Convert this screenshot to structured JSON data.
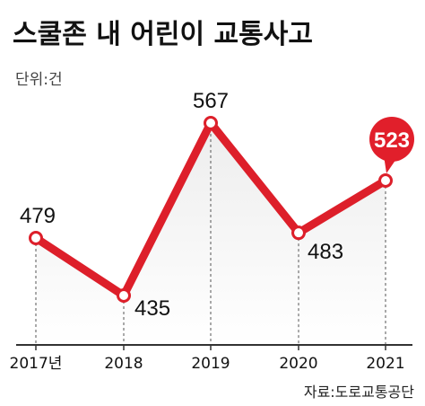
{
  "chart_data": {
    "type": "line",
    "title": "스쿨존 내 어린이 교통사고",
    "unit": "단위:건",
    "categories": [
      "2017년",
      "2018",
      "2019",
      "2020",
      "2021"
    ],
    "values": [
      479,
      435,
      567,
      483,
      523
    ],
    "highlight_index": 4,
    "source": "자료:도로교통공단",
    "colors": {
      "line": "#dd1f2a",
      "highlight": "#e11f2b",
      "area_top": "#f2f2f2",
      "axis": "#333333"
    }
  }
}
